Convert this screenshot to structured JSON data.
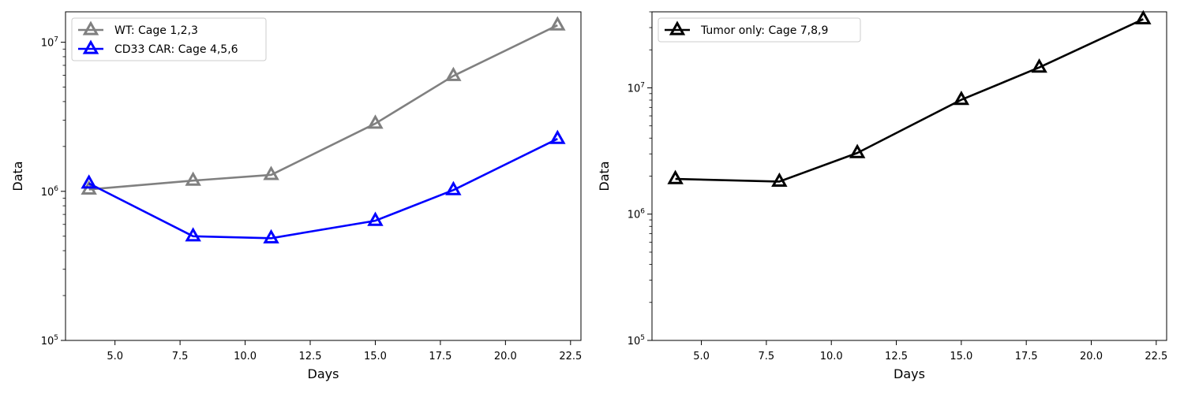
{
  "chart_data": [
    {
      "type": "line",
      "xlabel": "Days",
      "ylabel": "Data",
      "yscale": "log",
      "xlim": [
        3.1,
        22.9
      ],
      "ylim": [
        100000,
        16000000
      ],
      "xticks": [
        5.0,
        7.5,
        10.0,
        12.5,
        15.0,
        17.5,
        20.0,
        22.5
      ],
      "xtick_labels": [
        "5.0",
        "7.5",
        "10.0",
        "12.5",
        "15.0",
        "17.5",
        "20.0",
        "22.5"
      ],
      "yticks": [
        100000,
        1000000,
        10000000
      ],
      "ytick_labels": [
        {
          "base": "10",
          "exp": "5"
        },
        {
          "base": "10",
          "exp": "6"
        },
        {
          "base": "10",
          "exp": "7"
        }
      ],
      "legend_position": "top-left",
      "grid": false,
      "series": [
        {
          "name": "WT: Cage 1,2,3",
          "color": "#808080",
          "marker": "triangle-up-open",
          "x": [
            4,
            8,
            11,
            15,
            18,
            22
          ],
          "y": [
            1030000,
            1180000,
            1290000,
            2850000,
            5950000,
            13000000
          ]
        },
        {
          "name": "CD33 CAR: Cage 4,5,6",
          "color": "#0000ff",
          "marker": "triangle-up-open",
          "x": [
            4,
            8,
            11,
            15,
            18,
            22
          ],
          "y": [
            1130000,
            500000,
            485000,
            635000,
            1020000,
            2250000
          ]
        }
      ]
    },
    {
      "type": "line",
      "xlabel": "Days",
      "ylabel": "Data",
      "yscale": "log",
      "xlim": [
        3.1,
        22.9
      ],
      "ylim": [
        100000,
        40000000
      ],
      "xticks": [
        5.0,
        7.5,
        10.0,
        12.5,
        15.0,
        17.5,
        20.0,
        22.5
      ],
      "xtick_labels": [
        "5.0",
        "7.5",
        "10.0",
        "12.5",
        "15.0",
        "17.5",
        "20.0",
        "22.5"
      ],
      "yticks": [
        100000,
        1000000,
        10000000
      ],
      "ytick_labels": [
        {
          "base": "10",
          "exp": "5"
        },
        {
          "base": "10",
          "exp": "6"
        },
        {
          "base": "10",
          "exp": "7"
        }
      ],
      "legend_position": "top-left",
      "grid": false,
      "series": [
        {
          "name": "Tumor only: Cage 7,8,9",
          "color": "#000000",
          "marker": "triangle-up-open",
          "x": [
            4,
            8,
            11,
            15,
            18,
            22
          ],
          "y": [
            1900000,
            1810000,
            3050000,
            8050000,
            14500000,
            35000000
          ]
        }
      ]
    }
  ]
}
